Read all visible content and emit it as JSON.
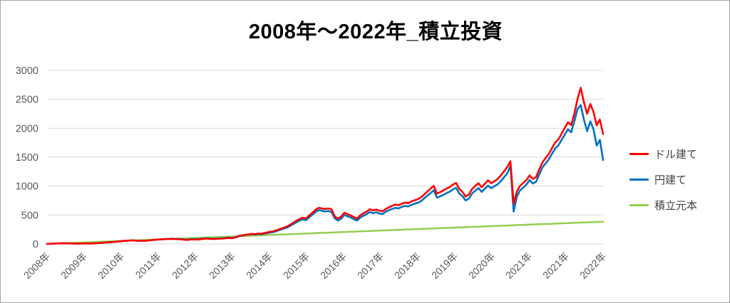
{
  "window": {
    "background": "#ffffff",
    "border_color": "#a6a6a6"
  },
  "title": "2008年～2022年_積立投資",
  "legend": {
    "position": "right",
    "entries": [
      {
        "label": "ドル建て",
        "color": "#ff0000"
      },
      {
        "label": "円建て",
        "color": "#0070c0"
      },
      {
        "label": "積立元本",
        "color": "#92d050"
      }
    ]
  },
  "chart_data": {
    "type": "line",
    "title": "2008年～2022年_積立投資",
    "xlabel": "",
    "ylabel": "",
    "ylim": [
      0,
      3000
    ],
    "y_ticks": [
      0,
      500,
      1000,
      1500,
      2000,
      2500,
      3000
    ],
    "x_tick_labels": [
      "2008年",
      "2009年",
      "2010年",
      "2011年",
      "2012年",
      "2013年",
      "2014年",
      "2015年",
      "2016年",
      "2017年",
      "2018年",
      "2019年",
      "2020年",
      "2021年",
      "2021年",
      "2022年"
    ],
    "x_unit": "monthly values, Jan 2008 - Jul 2022",
    "grid": "horizontal",
    "gridline_color": "#d9d9d9",
    "axis_label_color": "#595959",
    "legend_position": "right",
    "series": [
      {
        "name": "ドル建て",
        "color": "#ff0000",
        "stroke_width": 2.6,
        "values": [
          2,
          4,
          6,
          8,
          10,
          11,
          12,
          10,
          8,
          6,
          7,
          9,
          10,
          9,
          8,
          12,
          16,
          20,
          24,
          28,
          32,
          36,
          41,
          47,
          53,
          56,
          60,
          62,
          57,
          54,
          58,
          56,
          62,
          68,
          72,
          77,
          80,
          83,
          86,
          88,
          85,
          83,
          80,
          72,
          70,
          77,
          79,
          76,
          82,
          88,
          92,
          89,
          85,
          88,
          92,
          95,
          100,
          103,
          100,
          112,
          135,
          145,
          155,
          165,
          175,
          168,
          180,
          175,
          188,
          200,
          212,
          222,
          240,
          260,
          280,
          300,
          330,
          365,
          400,
          430,
          455,
          440,
          490,
          540,
          590,
          625,
          615,
          605,
          615,
          600,
          480,
          440,
          470,
          540,
          515,
          495,
          465,
          440,
          495,
          530,
          560,
          600,
          580,
          595,
          575,
          565,
          605,
          635,
          660,
          680,
          670,
          695,
          715,
          705,
          735,
          755,
          775,
          805,
          855,
          905,
          955,
          1005,
          870,
          895,
          925,
          955,
          985,
          1025,
          1055,
          950,
          900,
          820,
          855,
          950,
          1005,
          1050,
          980,
          1040,
          1100,
          1050,
          1085,
          1125,
          1185,
          1255,
          1330,
          1430,
          700,
          905,
          1005,
          1055,
          1105,
          1185,
          1125,
          1155,
          1285,
          1405,
          1485,
          1555,
          1655,
          1755,
          1805,
          1905,
          2005,
          2105,
          2055,
          2255,
          2505,
          2700,
          2450,
          2250,
          2420,
          2280,
          2050,
          2150,
          1900
        ]
      },
      {
        "name": "円建て",
        "color": "#0070c0",
        "stroke_width": 2.6,
        "values": [
          2,
          4,
          6,
          8,
          10,
          11,
          12,
          10,
          7,
          5,
          6,
          8,
          9,
          8,
          7,
          11,
          15,
          19,
          23,
          27,
          31,
          35,
          40,
          46,
          52,
          55,
          59,
          62,
          57,
          54,
          58,
          57,
          63,
          69,
          73,
          78,
          83,
          86,
          89,
          92,
          89,
          87,
          85,
          78,
          76,
          83,
          85,
          82,
          88,
          94,
          98,
          95,
          91,
          94,
          98,
          101,
          106,
          109,
          106,
          117,
          140,
          150,
          158,
          164,
          170,
          162,
          172,
          166,
          178,
          188,
          198,
          207,
          228,
          246,
          264,
          282,
          310,
          342,
          375,
          403,
          426,
          412,
          458,
          505,
          552,
          585,
          575,
          562,
          570,
          555,
          445,
          405,
          435,
          500,
          478,
          458,
          428,
          405,
          455,
          488,
          515,
          552,
          532,
          548,
          528,
          518,
          558,
          585,
          605,
          625,
          615,
          640,
          658,
          648,
          675,
          695,
          712,
          740,
          788,
          835,
          878,
          928,
          800,
          822,
          850,
          878,
          905,
          942,
          970,
          872,
          826,
          752,
          785,
          872,
          922,
          965,
          900,
          955,
          1010,
          965,
          998,
          1032,
          1088,
          1152,
          1218,
          1350,
          560,
          815,
          925,
          975,
          1025,
          1105,
          1045,
          1075,
          1198,
          1322,
          1392,
          1462,
          1558,
          1652,
          1702,
          1798,
          1892,
          1982,
          1932,
          2122,
          2332,
          2400,
          2150,
          1950,
          2120,
          1980,
          1700,
          1800,
          1450
        ]
      },
      {
        "name": "積立元本",
        "color": "#92d050",
        "stroke_width": 2.5,
        "linear": {
          "start": 2,
          "end": 385,
          "points": 175
        }
      }
    ]
  }
}
